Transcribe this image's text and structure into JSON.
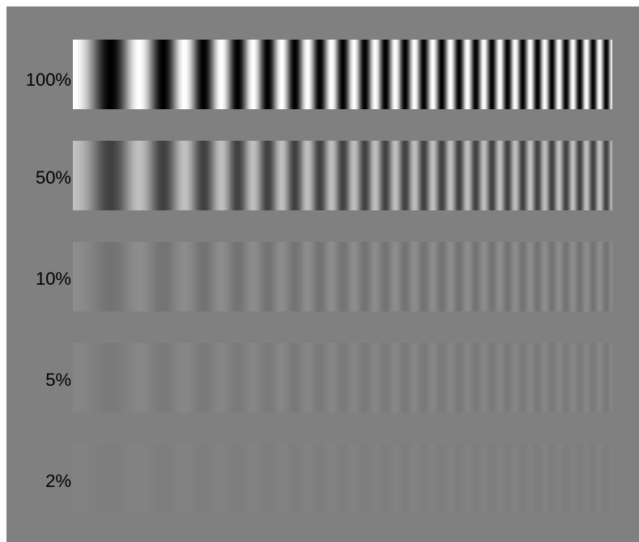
{
  "background_gray": "#808080",
  "gratings": [
    {
      "label": "100%",
      "contrast": 1.0
    },
    {
      "label": "50%",
      "contrast": 0.5
    },
    {
      "label": "10%",
      "contrast": 0.1
    },
    {
      "label": "5%",
      "contrast": 0.05
    },
    {
      "label": "2%",
      "contrast": 0.02
    }
  ]
}
